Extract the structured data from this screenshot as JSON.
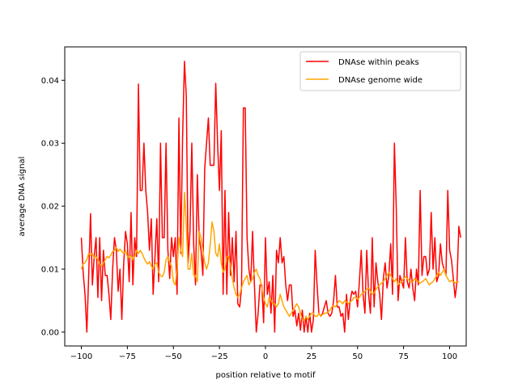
{
  "chart_data": {
    "type": "line",
    "xlabel": "position relative to motif",
    "ylabel": "average DNA signal",
    "xlim": [
      -109,
      109
    ],
    "ylim": [
      -0.0022,
      0.0453
    ],
    "x_ticks": [
      -100,
      -75,
      -50,
      -25,
      0,
      25,
      50,
      75,
      100
    ],
    "x_tick_labels": [
      "−100",
      "−75",
      "−50",
      "−25",
      "0",
      "25",
      "50",
      "75",
      "100"
    ],
    "y_ticks": [
      0.0,
      0.01,
      0.02,
      0.03,
      0.04
    ],
    "y_tick_labels": [
      "0.00",
      "0.01",
      "0.02",
      "0.03",
      "0.04"
    ],
    "grid": false,
    "legend_position": "upper right",
    "x_start": -100,
    "x_step": 1,
    "series": [
      {
        "name": "DNAse within peaks",
        "color": "#ff0000",
        "values": [
          0.015,
          0.0095,
          0.006,
          0.0,
          0.009,
          0.0188,
          0.0075,
          0.012,
          0.015,
          0.0055,
          0.015,
          0.005,
          0.013,
          0.009,
          0.009,
          0.006,
          0.002,
          0.01,
          0.015,
          0.013,
          0.0065,
          0.01,
          0.002,
          0.0108,
          0.016,
          0.014,
          0.008,
          0.019,
          0.0075,
          0.015,
          0.012,
          0.0394,
          0.0225,
          0.0225,
          0.03,
          0.0225,
          0.019,
          0.013,
          0.018,
          0.006,
          0.012,
          0.018,
          0.008,
          0.03,
          0.015,
          0.015,
          0.03,
          0.013,
          0.0085,
          0.015,
          0.012,
          0.015,
          0.006,
          0.034,
          0.0125,
          0.031,
          0.043,
          0.0375,
          0.011,
          0.016,
          0.03,
          0.014,
          0.0075,
          0.025,
          0.015,
          0.013,
          0.009,
          0.026,
          0.03,
          0.034,
          0.0265,
          0.0265,
          0.0265,
          0.0395,
          0.03,
          0.0225,
          0.032,
          0.006,
          0.0225,
          0.006,
          0.019,
          0.009,
          0.015,
          0.008,
          0.016,
          0.0045,
          0.004,
          0.007,
          0.0356,
          0.0356,
          0.015,
          0.01,
          0.008,
          0.016,
          0.0075,
          0.0,
          0.003,
          0.0075,
          0.0075,
          0.0015,
          0.015,
          0.006,
          0.008,
          0.003,
          0.009,
          0.0,
          0.013,
          0.011,
          0.015,
          0.011,
          0.012,
          0.0075,
          0.005,
          0.0075,
          0.0075,
          0.0025,
          0.0035,
          0.001,
          0.003,
          0.0003,
          0.0035,
          0.0,
          0.0025,
          0.0,
          0.003,
          0.0,
          0.002,
          0.013,
          0.0075,
          0.003,
          0.0025,
          0.003,
          0.004,
          0.005,
          0.003,
          0.0025,
          0.003,
          0.005,
          0.009,
          0.004,
          0.004,
          0.0025,
          0.003,
          0.0,
          0.006,
          0.002,
          0.005,
          0.0065,
          0.006,
          0.0065,
          0.004,
          0.008,
          0.013,
          0.006,
          0.003,
          0.013,
          0.006,
          0.003,
          0.015,
          0.004,
          0.011,
          0.008,
          0.006,
          0.002,
          0.0085,
          0.011,
          0.007,
          0.009,
          0.014,
          0.006,
          0.03,
          0.02,
          0.005,
          0.009,
          0.008,
          0.007,
          0.015,
          0.008,
          0.007,
          0.01,
          0.007,
          0.005,
          0.01,
          0.0075,
          0.0225,
          0.009,
          0.012,
          0.012,
          0.009,
          0.01,
          0.019,
          0.01,
          0.015,
          0.008,
          0.009,
          0.014,
          0.011,
          0.01,
          0.009,
          0.0225,
          0.013,
          0.0115,
          0.0085,
          0.0055,
          0.008,
          0.0168,
          0.015
        ]
      },
      {
        "name": "DNAse genome wide",
        "color": "#ffa500",
        "values": [
          0.01,
          0.0108,
          0.011,
          0.0115,
          0.0125,
          0.0122,
          0.0125,
          0.0118,
          0.012,
          0.0115,
          0.0108,
          0.0105,
          0.011,
          0.0115,
          0.012,
          0.0118,
          0.0122,
          0.0128,
          0.013,
          0.0135,
          0.0128,
          0.0132,
          0.0128,
          0.0125,
          0.013,
          0.012,
          0.0118,
          0.0122,
          0.0115,
          0.012,
          0.013,
          0.0125,
          0.013,
          0.0125,
          0.0118,
          0.0112,
          0.0108,
          0.0112,
          0.0105,
          0.01,
          0.0108,
          0.011,
          0.0095,
          0.009,
          0.0088,
          0.0095,
          0.0115,
          0.012,
          0.011,
          0.0105,
          0.008,
          0.0075,
          0.01,
          0.015,
          0.013,
          0.012,
          0.0222,
          0.017,
          0.01,
          0.01,
          0.0125,
          0.009,
          0.009,
          0.008,
          0.016,
          0.015,
          0.013,
          0.011,
          0.01,
          0.011,
          0.014,
          0.0175,
          0.016,
          0.0125,
          0.012,
          0.014,
          0.011,
          0.0095,
          0.01,
          0.012,
          0.012,
          0.0105,
          0.0085,
          0.007,
          0.006,
          0.0055,
          0.006,
          0.007,
          0.008,
          0.0085,
          0.009,
          0.0075,
          0.008,
          0.0085,
          0.0095,
          0.01,
          0.009,
          0.0085,
          0.007,
          0.0055,
          0.0045,
          0.004,
          0.0055,
          0.005,
          0.0045,
          0.0045,
          0.004,
          0.0045,
          0.006,
          0.005,
          0.004,
          0.0035,
          0.003,
          0.0025,
          0.003,
          0.0035,
          0.004,
          0.0045,
          0.004,
          0.003,
          0.002,
          0.0018,
          0.0025,
          0.002,
          0.0025,
          0.003,
          0.003,
          0.0025,
          0.0025,
          0.003,
          0.0025,
          0.0028,
          0.003,
          0.003,
          0.0032,
          0.0035,
          0.004,
          0.0042,
          0.004,
          0.0045,
          0.005,
          0.0048,
          0.0045,
          0.005,
          0.0048,
          0.0045,
          0.0048,
          0.005,
          0.0055,
          0.0055,
          0.0052,
          0.0055,
          0.006,
          0.0062,
          0.0065,
          0.0068,
          0.007,
          0.0065,
          0.006,
          0.0062,
          0.0068,
          0.0072,
          0.0075,
          0.0078,
          0.008,
          0.0085,
          0.009,
          0.0095,
          0.009,
          0.0085,
          0.008,
          0.0085,
          0.0075,
          0.0078,
          0.008,
          0.0085,
          0.0088,
          0.0085,
          0.0082,
          0.008,
          0.008,
          0.0085,
          0.0082,
          0.008,
          0.0078,
          0.008,
          0.0082,
          0.0085,
          0.008,
          0.0075,
          0.0078,
          0.008,
          0.0085,
          0.009,
          0.0095,
          0.009,
          0.0095,
          0.01,
          0.009,
          0.0085,
          0.008,
          0.0082,
          0.008,
          0.0078,
          0.008,
          0.008
        ]
      }
    ]
  }
}
